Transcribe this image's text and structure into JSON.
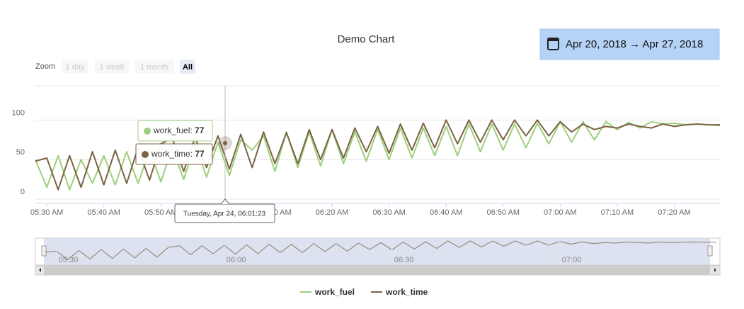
{
  "chart_data": {
    "type": "line",
    "title": "Demo Chart",
    "date_range": "Apr 20, 2018 → Apr 27, 2018",
    "zoom": {
      "label": "Zoom",
      "buttons": [
        "1 day",
        "1 week",
        "1 month",
        "All"
      ]
    },
    "x": [
      "05:28 AM",
      "05:30 AM",
      "05:32 AM",
      "05:34 AM",
      "05:36 AM",
      "05:38 AM",
      "05:40 AM",
      "05:42 AM",
      "05:44 AM",
      "05:46 AM",
      "05:48 AM",
      "05:50 AM",
      "05:52 AM",
      "05:54 AM",
      "05:56 AM",
      "05:58 AM",
      "06:00 AM",
      "06:02 AM",
      "06:04 AM",
      "06:06 AM",
      "06:08 AM",
      "06:10 AM",
      "06:12 AM",
      "06:14 AM",
      "06:16 AM",
      "06:18 AM",
      "06:20 AM",
      "06:22 AM",
      "06:24 AM",
      "06:26 AM",
      "06:28 AM",
      "06:30 AM",
      "06:32 AM",
      "06:34 AM",
      "06:36 AM",
      "06:38 AM",
      "06:40 AM",
      "06:42 AM",
      "06:44 AM",
      "06:46 AM",
      "06:48 AM",
      "06:50 AM",
      "06:52 AM",
      "06:54 AM",
      "06:56 AM",
      "06:58 AM",
      "07:00 AM",
      "07:02 AM",
      "07:04 AM",
      "07:06 AM",
      "07:08 AM",
      "07:10 AM",
      "07:12 AM",
      "07:14 AM",
      "07:16 AM",
      "07:18 AM",
      "07:20 AM",
      "07:22 AM",
      "07:24 AM",
      "07:26 AM",
      "07:28 AM"
    ],
    "series": [
      {
        "name": "work_fuel",
        "color": "#9fcf7a",
        "values": [
          50,
          15,
          55,
          12,
          50,
          20,
          55,
          18,
          60,
          20,
          62,
          22,
          65,
          25,
          70,
          28,
          72,
          30,
          75,
          62,
          80,
          35,
          85,
          40,
          85,
          42,
          88,
          45,
          85,
          48,
          88,
          50,
          90,
          52,
          90,
          55,
          92,
          55,
          95,
          60,
          95,
          62,
          95,
          65,
          96,
          70,
          98,
          72,
          98,
          75,
          98,
          88,
          97,
          90,
          98,
          95,
          96,
          94,
          95,
          94,
          93
        ]
      },
      {
        "name": "work_time",
        "color": "#7b6344",
        "values": [
          48,
          52,
          12,
          55,
          15,
          60,
          18,
          62,
          20,
          65,
          24,
          70,
          77,
          35,
          78,
          40,
          80,
          38,
          82,
          40,
          85,
          45,
          84,
          45,
          88,
          50,
          88,
          52,
          90,
          60,
          92,
          58,
          95,
          62,
          96,
          65,
          100,
          70,
          100,
          72,
          100,
          75,
          100,
          80,
          100,
          80,
          98,
          85,
          95,
          88,
          92,
          90,
          95,
          92,
          90,
          95,
          92,
          94,
          95,
          94,
          94
        ]
      }
    ],
    "xlim": [
      "05:28 AM",
      "07:28 AM"
    ],
    "xticks": [
      "05:30 AM",
      "05:40 AM",
      "05:50 AM",
      "06:00 AM",
      "06:10 AM",
      "06:20 AM",
      "06:30 AM",
      "06:40 AM",
      "06:50 AM",
      "07:00 AM",
      "07:10 AM",
      "07:20 AM"
    ],
    "ylim": [
      0,
      147
    ],
    "yticks": [
      0,
      50,
      100
    ],
    "grid": true,
    "tooltip": {
      "header": "Tuesday, Apr 24, 06:01:23",
      "values": [
        77,
        77
      ]
    },
    "navigator": {
      "xticks": [
        "05:30",
        "06:00",
        "06:30",
        "07:00"
      ]
    }
  }
}
